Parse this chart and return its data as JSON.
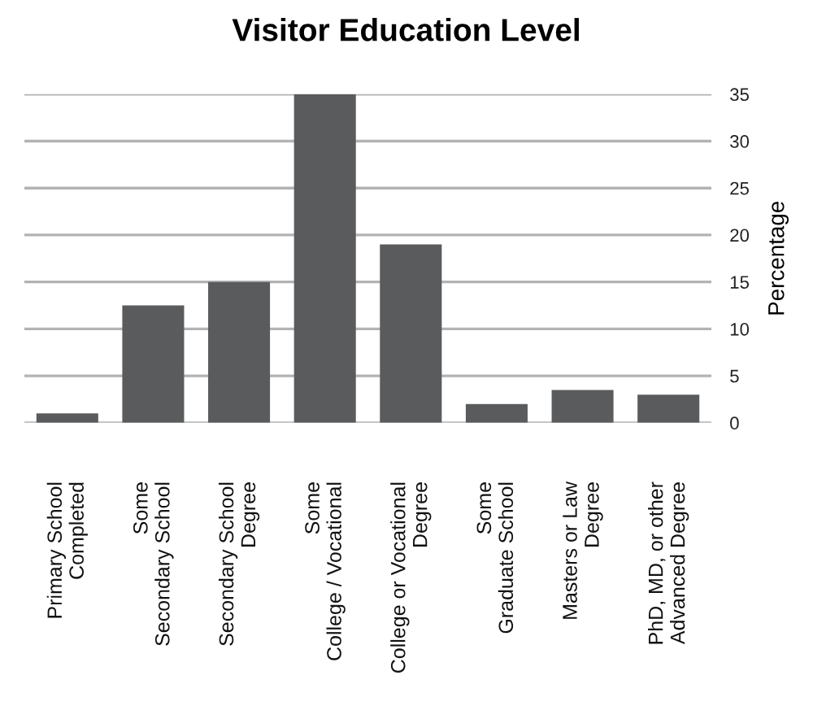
{
  "chart_data": {
    "type": "bar",
    "title": "Visitor Education Level",
    "ylabel": "Percentage",
    "categories": [
      "Primary School\nCompleted",
      "Some\nSecondary School",
      "Secondary School\nDegree",
      "Some\nCollege / Vocational",
      "College or Vocational\nDegree",
      "Some\nGraduate School",
      "Masters or Law\nDegree",
      "PhD, MD, or other\nAdvanced Degree"
    ],
    "values": [
      1,
      12.5,
      15,
      35,
      19,
      2,
      3.5,
      3
    ],
    "color": "#5a5b5d",
    "ylim": [
      0,
      35
    ],
    "yticks": [
      0,
      5,
      10,
      15,
      20,
      25,
      30,
      35
    ],
    "grid": "y"
  }
}
